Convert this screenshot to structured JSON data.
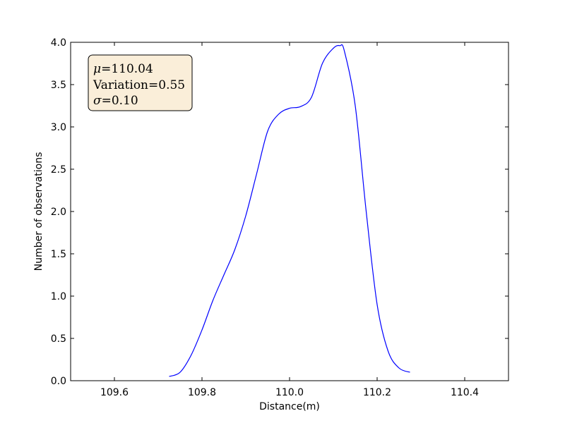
{
  "chart_data": {
    "type": "line",
    "title": "",
    "xlabel": "Distance(m)",
    "ylabel": "Number of observations",
    "xlim": [
      109.5,
      110.5
    ],
    "ylim": [
      0.0,
      4.0
    ],
    "xticks": [
      109.6,
      109.8,
      110.0,
      110.2,
      110.4
    ],
    "xtick_labels": [
      "109.6",
      "109.8",
      "110.0",
      "110.2",
      "110.4"
    ],
    "yticks": [
      0.0,
      0.5,
      1.0,
      1.5,
      2.0,
      2.5,
      3.0,
      3.5,
      4.0
    ],
    "ytick_labels": [
      "0.0",
      "0.5",
      "1.0",
      "1.5",
      "2.0",
      "2.5",
      "3.0",
      "3.5",
      "4.0"
    ],
    "grid": false,
    "series": [
      {
        "color": "#0000ff",
        "x": [
          109.725,
          109.75,
          109.775,
          109.8,
          109.825,
          109.85,
          109.875,
          109.9,
          109.925,
          109.95,
          109.975,
          110.0,
          110.025,
          110.05,
          110.075,
          110.1,
          110.115,
          110.125,
          110.15,
          110.175,
          110.2,
          110.225,
          110.25,
          110.275
        ],
        "y": [
          0.05,
          0.1,
          0.3,
          0.6,
          0.95,
          1.25,
          1.55,
          1.95,
          2.45,
          2.95,
          3.15,
          3.22,
          3.24,
          3.35,
          3.75,
          3.93,
          3.96,
          3.9,
          3.25,
          2.0,
          0.9,
          0.35,
          0.15,
          0.1
        ]
      }
    ],
    "annotation": {
      "lines": [
        {
          "symbol": "μ",
          "label": "",
          "eq": "=",
          "value": "110.04"
        },
        {
          "symbol": "",
          "label": "Variation",
          "eq": "=",
          "value": "0.55"
        },
        {
          "symbol": "σ",
          "label": "",
          "eq": "=",
          "value": "0.10"
        }
      ],
      "box_fill": "#f5deb3",
      "box_edge": "#000000"
    }
  }
}
